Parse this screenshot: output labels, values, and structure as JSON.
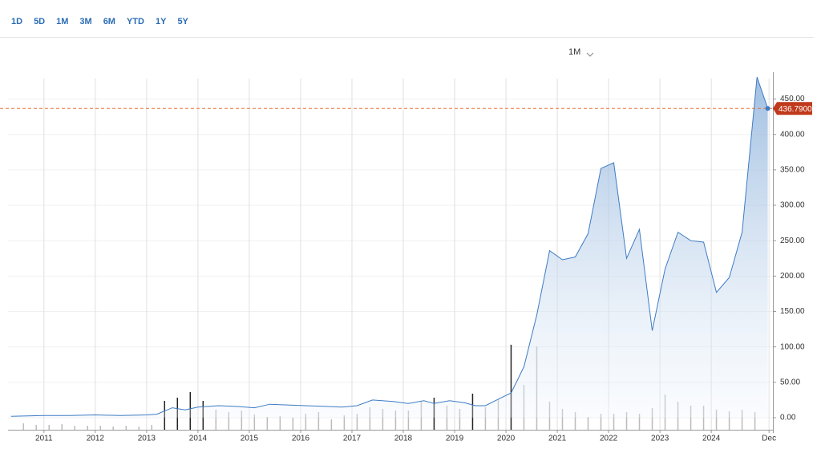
{
  "range_buttons": [
    "1D",
    "5D",
    "1M",
    "3M",
    "6M",
    "YTD",
    "1Y",
    "5Y"
  ],
  "interval": "1M",
  "chart_data": {
    "type": "line",
    "xlim": [
      2010.3,
      2025.2
    ],
    "ylim": [
      -17,
      488
    ],
    "y2lim": [
      0,
      446
    ],
    "xticks": [
      2011,
      2012,
      2013,
      2014,
      2015,
      2016,
      2017,
      2018,
      2019,
      2020,
      2021,
      2022,
      2023,
      2024,
      {
        "value": 2025.125,
        "label": "Dec"
      }
    ],
    "yticks": [
      {
        "value": 0,
        "label": "0.00"
      },
      {
        "value": 50,
        "label": "50.00"
      },
      {
        "value": 100,
        "label": "100.00"
      },
      {
        "value": 150,
        "label": "150.00"
      },
      {
        "value": 200,
        "label": "200.00"
      },
      {
        "value": 250,
        "label": "250.00"
      },
      {
        "value": 300,
        "label": "300.00"
      },
      {
        "value": 350,
        "label": "350.00"
      },
      {
        "value": 400,
        "label": "400.00"
      },
      {
        "value": 450,
        "label": "450.00"
      }
    ],
    "grid": true,
    "last_price": {
      "value": 436.79,
      "label": "436.7900",
      "color": "#c0391b"
    },
    "series": [
      {
        "type": "line",
        "color": "#3d7cc4",
        "x": [
          2010.36,
          2011.0,
          2011.5,
          2012.0,
          2012.5,
          2013.0,
          2013.2,
          2013.5,
          2013.75,
          2014.0,
          2014.4,
          2014.75,
          2015.1,
          2015.4,
          2015.75,
          2016.1,
          2016.5,
          2016.8,
          2017.1,
          2017.4,
          2017.8,
          2018.1,
          2018.4,
          2018.6,
          2018.9,
          2019.2,
          2019.4,
          2019.6,
          2019.9,
          2020.1,
          2020.35,
          2020.6,
          2020.85,
          2021.1,
          2021.35,
          2021.6,
          2021.85,
          2022.1,
          2022.35,
          2022.6,
          2022.85,
          2023.1,
          2023.35,
          2023.6,
          2023.85,
          2024.1,
          2024.35,
          2024.6,
          2024.89,
          2025.1
        ],
        "values": [
          2,
          3,
          3,
          4,
          3,
          4,
          5,
          14,
          11,
          15,
          17,
          16,
          14,
          19,
          18,
          17,
          16,
          15,
          17,
          25,
          23,
          20,
          24,
          20,
          24,
          21,
          17,
          17,
          28,
          35,
          72,
          145,
          236,
          223,
          227,
          260,
          352,
          360,
          225,
          266,
          123,
          210,
          262,
          250,
          248,
          177,
          198,
          262,
          481,
          436.79
        ]
      },
      {
        "type": "bar",
        "axis": "y2",
        "x": [
          2010.6,
          2010.85,
          2011.1,
          2011.35,
          2011.6,
          2011.85,
          2012.1,
          2012.35,
          2012.6,
          2012.85,
          2013.1,
          2013.35,
          2013.6,
          2013.85,
          2014.1,
          2014.35,
          2014.6,
          2014.85,
          2015.1,
          2015.35,
          2015.6,
          2015.85,
          2016.1,
          2016.35,
          2016.6,
          2016.85,
          2017.1,
          2017.35,
          2017.6,
          2017.85,
          2018.1,
          2018.35,
          2018.6,
          2018.85,
          2019.1,
          2019.35,
          2019.6,
          2019.85,
          2020.1,
          2020.35,
          2020.6,
          2020.85,
          2021.1,
          2021.35,
          2021.6,
          2021.85,
          2022.1,
          2022.35,
          2022.6,
          2022.85,
          2023.1,
          2023.35,
          2023.6,
          2023.85,
          2024.1,
          2024.35,
          2024.6,
          2024.85
        ],
        "values": [
          8,
          6,
          6,
          7,
          5,
          5,
          5,
          4,
          5,
          4,
          6,
          36,
          40,
          47,
          36,
          25,
          22,
          24,
          19,
          16,
          17,
          15,
          20,
          22,
          13,
          18,
          20,
          28,
          26,
          24,
          24,
          35,
          40,
          30,
          26,
          45,
          28,
          38,
          106,
          56,
          104,
          35,
          26,
          22,
          16,
          20,
          20,
          22,
          20,
          27,
          44,
          35,
          30,
          30,
          25,
          23,
          25,
          22
        ],
        "colors": [
          "#bbb",
          "#bbb",
          "#bbb",
          "#bbb",
          "#bbb",
          "#bbb",
          "#bbb",
          "#bbb",
          "#bbb",
          "#bbb",
          "#bbb",
          "#222",
          "#222",
          "#222",
          "#222",
          "#bbb",
          "#bbb",
          "#bbb",
          "#bbb",
          "#bbb",
          "#bbb",
          "#bbb",
          "#bbb",
          "#bbb",
          "#bbb",
          "#bbb",
          "#bbb",
          "#bbb",
          "#bbb",
          "#bbb",
          "#bbb",
          "#bbb",
          "#222",
          "#bbb",
          "#bbb",
          "#222",
          "#bbb",
          "#bbb",
          "#222",
          "#bbb",
          "#bbb",
          "#bbb",
          "#bbb",
          "#bbb",
          "#bbb",
          "#bbb",
          "#bbb",
          "#bbb",
          "#bbb",
          "#bbb",
          "#bbb",
          "#bbb",
          "#bbb",
          "#bbb",
          "#bbb",
          "#bbb",
          "#bbb",
          "#bbb"
        ]
      }
    ]
  }
}
